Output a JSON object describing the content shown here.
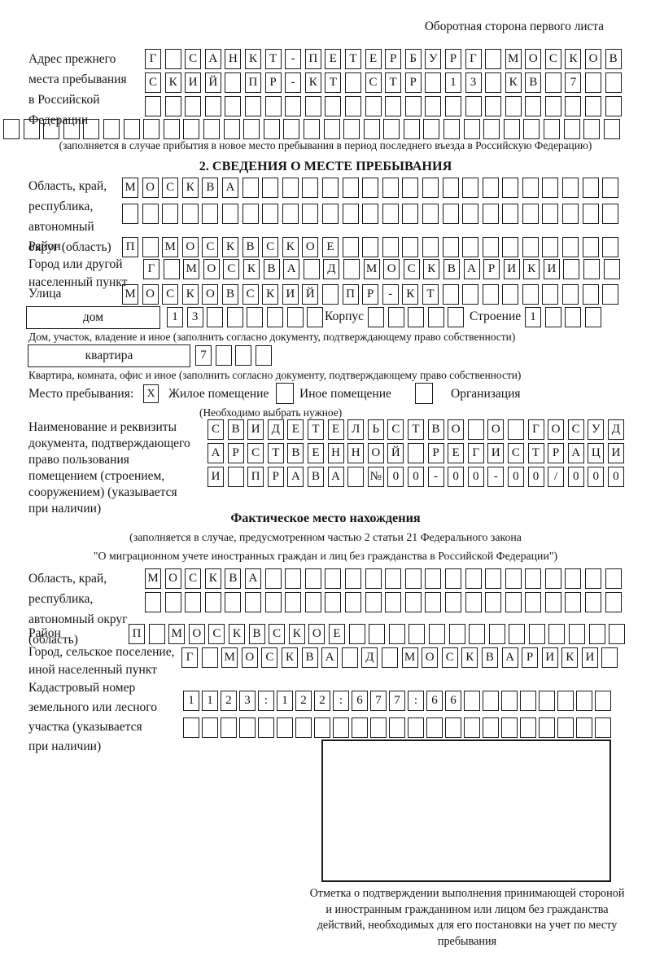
{
  "page": {
    "corner_note": "Оборотная сторона первого листа"
  },
  "prev_address": {
    "label": "Адрес прежнего\nместа пребывания\nв Российской\nФедерации",
    "rows": [
      {
        "text": "Г САНКТ-ПЕТЕРБУРГ МОСКОВ",
        "count": 24
      },
      {
        "text": "СКИЙ ПР-КТ СТР 13 КВ 7",
        "count": 24
      },
      {
        "text": "",
        "count": 24
      },
      {
        "text": "",
        "count": 31
      }
    ],
    "note": "(заполняется в случае прибытия в новое место пребывания в период последнего въезда в Российскую Федерацию)"
  },
  "section2": {
    "title": "2. СВЕДЕНИЯ О МЕСТЕ ПРЕБЫВАНИЯ",
    "region": {
      "label": "Область, край,\nреспублика,\nавтономный\nокруг (область)",
      "rows": [
        {
          "text": "МОСКВА",
          "count": 25
        },
        {
          "text": "",
          "count": 25
        }
      ]
    },
    "district": {
      "label": "Район",
      "row": {
        "text": "П МОСКВСКОЕ",
        "count": 25
      }
    },
    "city": {
      "label": "Город или другой\nнаселенный пункт",
      "row": {
        "text": "Г МОСКВА Д МОСКВАРИКИ",
        "count": 24
      }
    },
    "street": {
      "label": "Улица",
      "row": {
        "text": "МОСКОВСКИЙ ПР-КТ",
        "count": 25
      }
    },
    "house": {
      "box_label": "дом",
      "cells": {
        "text": "13",
        "count": 8
      },
      "korpus_label": "Корпус",
      "korpus_cells": {
        "text": "",
        "count": 5
      },
      "stroenie_label": "Строение",
      "stroenie_cells": {
        "text": "1",
        "count": 4
      },
      "note": "Дом, участок, владение и иное (заполнить согласно документу, подтверждающему право собственности)"
    },
    "apartment": {
      "box_label": "квартира",
      "cells": {
        "text": "7",
        "count": 4
      },
      "note": "Квартира, комната, офис и иное (заполнить согласно документу, подтверждающему право собственности)"
    },
    "stay_type": {
      "label": "Место пребывания:",
      "options": [
        {
          "mark": "X",
          "label": "Жилое помещение"
        },
        {
          "mark": "",
          "label": "Иное помещение"
        },
        {
          "mark": "",
          "label": "Организация"
        }
      ],
      "note": "(Необходимо выбрать нужное)"
    },
    "document": {
      "label": "Наименование и реквизиты\nдокумента, подтверждающего\nправо пользования\nпомещением (строением,\nсооружением) (указывается\nпри наличии)",
      "rows": [
        {
          "text": "СВИДЕТЕЛЬСТВО О ГОСУД",
          "count": 21
        },
        {
          "text": "АРСТВЕННОЙ РЕГИСТРАЦИ",
          "count": 21
        },
        {
          "text": "И ПРАВА №00-00-00/000",
          "count": 21
        }
      ]
    }
  },
  "actual_location": {
    "title": "Фактическое место нахождения",
    "note_line1": "(заполняется в случае, предусмотренном частью 2 статьи 21 Федерального закона",
    "note_line2": "\"О миграционном учете иностранных граждан и лиц без гражданства в Российской Федерации\")",
    "region": {
      "label": "Область, край,\nреспублика,\nавтономный округ\n(область)",
      "rows": [
        {
          "text": "МОСКВА",
          "count": 24
        },
        {
          "text": "",
          "count": 24
        }
      ]
    },
    "district": {
      "label": "Район",
      "row": {
        "text": "П МОСКВСКОЕ",
        "count": 25
      }
    },
    "city": {
      "label": "Город, сельское поселение,\nиной населенный пункт",
      "row": {
        "text": "Г МОСКВА Д МОСКВАРИКИ",
        "count": 22
      }
    },
    "cadastral": {
      "label": "Кадастровый номер\nземельного или лесного\nучастка (указывается\nпри наличии)",
      "rows": [
        {
          "text": "1123:122:677:66",
          "count": 23
        },
        {
          "text": "",
          "count": 23
        }
      ]
    },
    "stamp_note": "Отметка о подтверждении выполнения принимающей стороной и иностранным гражданином или лицом без гражданства действий, необходимых для его постановки на учет по месту пребывания"
  }
}
